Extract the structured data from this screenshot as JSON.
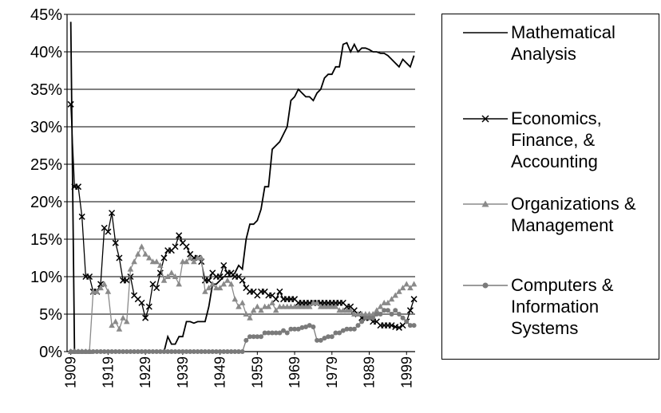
{
  "chart_data": {
    "type": "line",
    "x": [
      1909,
      1910,
      1911,
      1912,
      1913,
      1914,
      1915,
      1916,
      1917,
      1918,
      1919,
      1920,
      1921,
      1922,
      1923,
      1924,
      1925,
      1926,
      1927,
      1928,
      1929,
      1930,
      1931,
      1932,
      1933,
      1934,
      1935,
      1936,
      1937,
      1938,
      1939,
      1940,
      1941,
      1942,
      1943,
      1944,
      1945,
      1946,
      1947,
      1948,
      1949,
      1950,
      1951,
      1952,
      1953,
      1954,
      1955,
      1956,
      1957,
      1958,
      1959,
      1960,
      1961,
      1962,
      1963,
      1964,
      1965,
      1966,
      1967,
      1968,
      1969,
      1970,
      1971,
      1972,
      1973,
      1974,
      1975,
      1976,
      1977,
      1978,
      1979,
      1980,
      1981,
      1982,
      1983,
      1984,
      1985,
      1986,
      1987,
      1988,
      1989,
      1990,
      1991,
      1992,
      1993,
      1994,
      1995,
      1996,
      1997,
      1998,
      1999,
      2000,
      2001
    ],
    "series": [
      {
        "name": "Mathematical Analysis",
        "color": "#000000",
        "marker": "none",
        "values": [
          44,
          0,
          0,
          0,
          0,
          0,
          0,
          0,
          0,
          0,
          0,
          0,
          0,
          0,
          0,
          0,
          0,
          0,
          0,
          0,
          0,
          0,
          0,
          0,
          0,
          0,
          2,
          1,
          1,
          2,
          2,
          4,
          4,
          3.8,
          4,
          4,
          4,
          6,
          9,
          9,
          9.5,
          10,
          10,
          10,
          10.5,
          11.5,
          11,
          15,
          17,
          17,
          17.5,
          19,
          22,
          22,
          27,
          27.5,
          28,
          29,
          30,
          33.5,
          34,
          35,
          34.5,
          34,
          34,
          33.5,
          34.5,
          35,
          36.5,
          37,
          37,
          38,
          38,
          41,
          41.2,
          40,
          41,
          40,
          40.5,
          40.5,
          40.3,
          40,
          40,
          39.8,
          39.8,
          39.5,
          39,
          38.5,
          38,
          39,
          38.5,
          38,
          39.5
        ]
      },
      {
        "name": "Economics, Finance, & Accounting",
        "color": "#000000",
        "marker": "x",
        "values": [
          33,
          22,
          22,
          18,
          10,
          10,
          8,
          8,
          9,
          16.5,
          16,
          18.5,
          14.5,
          12.5,
          9.5,
          9.5,
          10,
          7.5,
          7,
          6.5,
          4.5,
          6,
          9,
          8.5,
          10.5,
          12.5,
          13.5,
          13.5,
          14,
          15.5,
          14.5,
          14,
          13,
          12.5,
          12.5,
          12,
          9.5,
          9.5,
          10.5,
          10,
          10,
          11.5,
          10.5,
          10.5,
          10,
          10,
          9.5,
          8.5,
          8,
          8,
          7.5,
          8,
          8,
          7.5,
          7.5,
          7,
          8,
          7,
          7,
          7,
          7,
          6.5,
          6.5,
          6.5,
          6.5,
          6.5,
          6.5,
          6.5,
          6.5,
          6.5,
          6.5,
          6.5,
          6.5,
          6.5,
          6,
          6,
          5.5,
          5,
          4.5,
          4.5,
          4.5,
          4,
          4,
          3.5,
          3.5,
          3.5,
          3.5,
          3.3,
          3.2,
          3.5,
          4,
          5.5,
          7
        ]
      },
      {
        "name": "Organizations & Management",
        "color": "#8a8a8a",
        "marker": "triangle",
        "values": [
          0,
          0,
          0,
          0,
          0,
          0,
          8,
          8,
          8.5,
          9,
          8,
          3.5,
          4,
          3,
          4.5,
          4,
          11,
          12,
          13,
          14,
          13,
          12.5,
          12,
          12,
          11.5,
          9.5,
          10,
          10.5,
          10,
          9,
          12,
          12,
          12.5,
          12,
          12.5,
          12.5,
          8,
          8.5,
          9,
          8.5,
          8.5,
          9,
          9.5,
          9,
          7,
          6,
          6.5,
          5,
          4.5,
          5.5,
          6,
          5.5,
          6,
          6,
          6.5,
          5.5,
          6,
          6,
          6,
          6,
          6,
          6,
          6,
          6,
          6,
          6.5,
          6.5,
          6,
          6,
          6,
          6,
          6,
          5.5,
          5.5,
          5.5,
          5.5,
          5,
          5,
          5,
          5,
          5,
          5,
          5.5,
          6,
          6.5,
          6.5,
          7,
          7.5,
          8,
          8.5,
          9,
          8.5,
          9
        ]
      },
      {
        "name": "Computers & Information Systems",
        "color": "#7a7a7a",
        "marker": "circle",
        "values": [
          0,
          0,
          0,
          0,
          0,
          0,
          0,
          0,
          0,
          0,
          0,
          0,
          0,
          0,
          0,
          0,
          0,
          0,
          0,
          0,
          0,
          0,
          0,
          0,
          0,
          0,
          0,
          0,
          0,
          0,
          0,
          0,
          0,
          0,
          0,
          0,
          0,
          0,
          0,
          0,
          0,
          0,
          0,
          0,
          0,
          0,
          0,
          1.5,
          2,
          2,
          2,
          2,
          2.5,
          2.5,
          2.5,
          2.5,
          2.5,
          2.8,
          2.5,
          3,
          3,
          3,
          3.2,
          3.3,
          3.5,
          3.3,
          1.5,
          1.5,
          1.8,
          2,
          2,
          2.5,
          2.5,
          2.8,
          3,
          3,
          3,
          3.5,
          4,
          4.5,
          4.5,
          4.5,
          5,
          5,
          5.5,
          5.5,
          5,
          5.5,
          5,
          4.5,
          4,
          3.5,
          3.5
        ]
      }
    ],
    "xlim": [
      1908,
      2001.3
    ],
    "xticks": [
      1909,
      1919,
      1929,
      1939,
      1949,
      1959,
      1969,
      1979,
      1989,
      1999
    ],
    "ylim": [
      0,
      45
    ],
    "yticks": [
      {
        "value": 0,
        "label": "0%"
      },
      {
        "value": 5,
        "label": "5%"
      },
      {
        "value": 10,
        "label": "10%"
      },
      {
        "value": 15,
        "label": "15%"
      },
      {
        "value": 20,
        "label": "20%"
      },
      {
        "value": 25,
        "label": "25%"
      },
      {
        "value": 30,
        "label": "30%"
      },
      {
        "value": 35,
        "label": "35%"
      },
      {
        "value": 40,
        "label": "40%"
      },
      {
        "value": 45,
        "label": "45%"
      }
    ],
    "grid": true
  }
}
